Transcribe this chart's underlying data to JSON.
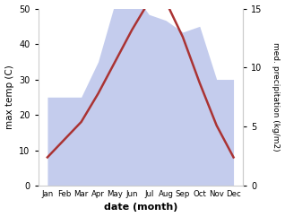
{
  "months": [
    "Jan",
    "Feb",
    "Mar",
    "Apr",
    "May",
    "Jun",
    "Jul",
    "Aug",
    "Sep",
    "Oct",
    "Nov",
    "Dec"
  ],
  "temperature": [
    8,
    13,
    18,
    26,
    35,
    44,
    52,
    52,
    42,
    29,
    17,
    8
  ],
  "precipitation": [
    7.5,
    7.5,
    7.5,
    10.5,
    15.5,
    16.5,
    14.5,
    14.0,
    13.0,
    13.5,
    9.0,
    9.0
  ],
  "temp_ylim": [
    0,
    50
  ],
  "precip_ylim": [
    0,
    15
  ],
  "temp_yticks": [
    0,
    10,
    20,
    30,
    40,
    50
  ],
  "precip_yticks": [
    0,
    5,
    10,
    15
  ],
  "fill_color": "#b0bce8",
  "fill_alpha": 0.75,
  "line_color": "#aa3333",
  "line_width": 1.8,
  "xlabel": "date (month)",
  "ylabel_left": "max temp (C)",
  "ylabel_right": "med. precipitation (kg/m2)",
  "bg_color": "#ffffff"
}
